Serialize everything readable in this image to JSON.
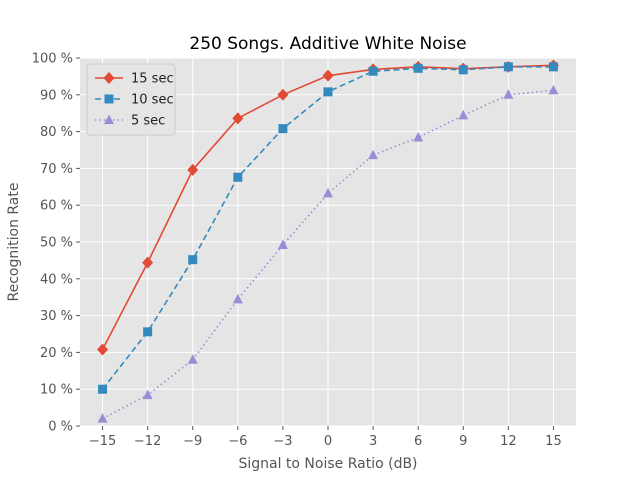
{
  "chart_data": {
    "type": "line",
    "title": "250 Songs. Additive White Noise",
    "xlabel": "Signal to Noise Ratio (dB)",
    "ylabel": "Recognition Rate",
    "x": [
      -15,
      -12,
      -9,
      -6,
      -3,
      0,
      3,
      6,
      9,
      12,
      15
    ],
    "x_tick_labels": [
      "−15",
      "−12",
      "−9",
      "−6",
      "−3",
      "0",
      "3",
      "6",
      "9",
      "12",
      "15"
    ],
    "xlim": [
      -16.5,
      16.5
    ],
    "ylim": [
      0,
      100
    ],
    "y_ticks": [
      0,
      10,
      20,
      30,
      40,
      50,
      60,
      70,
      80,
      90,
      100
    ],
    "y_tick_labels": [
      "0 %",
      "10 %",
      "20 %",
      "30 %",
      "40 %",
      "50 %",
      "60 %",
      "70 %",
      "80 %",
      "90 %",
      "100 %"
    ],
    "grid": true,
    "legend_position": "top-left",
    "background": "#e5e5e5",
    "series": [
      {
        "name": "15 sec",
        "color": "#e24a33",
        "marker": "diamond",
        "line_style": "solid",
        "values": [
          20.8,
          44.4,
          69.6,
          83.6,
          90.0,
          95.2,
          96.9,
          97.6,
          97.1,
          97.6,
          98.0
        ]
      },
      {
        "name": "10 sec",
        "color": "#348abd",
        "marker": "square",
        "line_style": "dashed",
        "values": [
          10.0,
          25.6,
          45.2,
          67.6,
          80.8,
          90.8,
          96.4,
          97.2,
          96.8,
          97.6,
          97.6
        ]
      },
      {
        "name": "5 sec",
        "color": "#988ed5",
        "marker": "triangle",
        "line_style": "dotted",
        "values": [
          2.0,
          8.4,
          18.0,
          34.4,
          49.2,
          63.2,
          73.6,
          78.4,
          84.4,
          90.0,
          91.2
        ]
      }
    ]
  }
}
